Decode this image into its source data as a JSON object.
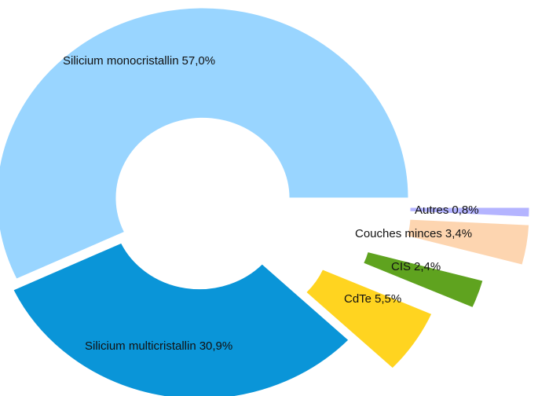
{
  "chart_data": {
    "type": "donut",
    "categories": [
      "Silicium monocristallin",
      "Silicium multicristallin",
      "CdTe",
      "CIS",
      "Couches minces",
      "Autres"
    ],
    "values": [
      57.0,
      30.9,
      5.5,
      2.4,
      3.4,
      0.8
    ],
    "value_labels": [
      "57,0%",
      "30,9%",
      "5,5%",
      "2,4%",
      "3,4%",
      "0,8%"
    ],
    "colors": [
      "#99d5ff",
      "#0a95d8",
      "#ffd420",
      "#5fa31f",
      "#fdd5b0",
      "#b4b4ff"
    ]
  }
}
